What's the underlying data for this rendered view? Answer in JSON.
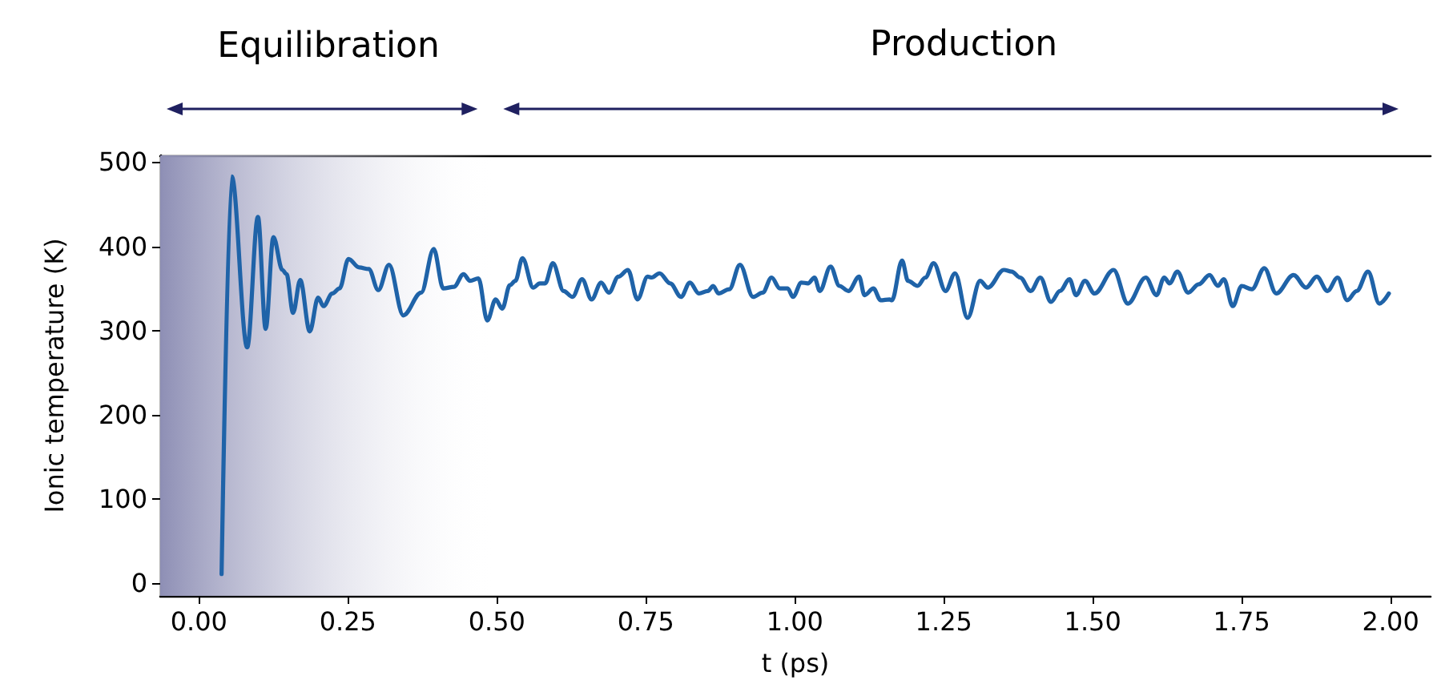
{
  "chart_data": {
    "type": "line",
    "xlabel": "t (ps)",
    "ylabel": "Ionic temperature (K)",
    "xlim": [
      -0.065,
      2.067
    ],
    "ylim": [
      -15,
      508
    ],
    "xticks": [
      {
        "value": 0,
        "label": "0.00"
      },
      {
        "value": 0.25,
        "label": "0.25"
      },
      {
        "value": 0.5,
        "label": "0.50"
      },
      {
        "value": 0.75,
        "label": "0.75"
      },
      {
        "value": 1,
        "label": "1.00"
      },
      {
        "value": 1.25,
        "label": "1.25"
      },
      {
        "value": 1.5,
        "label": "1.50"
      },
      {
        "value": 1.75,
        "label": "1.75"
      },
      {
        "value": 2,
        "label": "2.00"
      }
    ],
    "yticks": [
      0,
      100,
      200,
      300,
      400,
      500
    ],
    "grid": false,
    "marker": "none",
    "line_style": "solid",
    "bands": [
      {
        "axis": "x",
        "from": -0.065,
        "to": 0.5,
        "label": "Equilibration",
        "color": "#8e8fb5"
      }
    ],
    "annotations": [
      "Production"
    ],
    "series": [
      {
        "color": "#1f63a8",
        "x": [
          0.038,
          0.055,
          0.081,
          0.099,
          0.112,
          0.125,
          0.14,
          0.147,
          0.158,
          0.17,
          0.186,
          0.2,
          0.209,
          0.224,
          0.236,
          0.251,
          0.269,
          0.285,
          0.301,
          0.319,
          0.343,
          0.373,
          0.394,
          0.41,
          0.428,
          0.444,
          0.455,
          0.469,
          0.484,
          0.498,
          0.509,
          0.522,
          0.531,
          0.543,
          0.561,
          0.572,
          0.581,
          0.594,
          0.612,
          0.627,
          0.643,
          0.659,
          0.675,
          0.688,
          0.704,
          0.72,
          0.736,
          0.753,
          0.76,
          0.773,
          0.791,
          0.809,
          0.824,
          0.839,
          0.854,
          0.863,
          0.872,
          0.89,
          0.908,
          0.93,
          0.946,
          0.961,
          0.975,
          0.988,
          0.997,
          1.011,
          1.022,
          1.033,
          1.042,
          1.06,
          1.075,
          1.09,
          1.108,
          1.117,
          1.132,
          1.144,
          1.159,
          1.163,
          1.18,
          1.19,
          1.206,
          1.219,
          1.233,
          1.253,
          1.269,
          1.29,
          1.311,
          1.324,
          1.351,
          1.364,
          1.378,
          1.396,
          1.412,
          1.43,
          1.445,
          1.461,
          1.472,
          1.487,
          1.503,
          1.535,
          1.559,
          1.589,
          1.607,
          1.62,
          1.629,
          1.642,
          1.66,
          1.678,
          1.696,
          1.71,
          1.72,
          1.735,
          1.75,
          1.767,
          1.788,
          1.808,
          1.837,
          1.858,
          1.876,
          1.894,
          1.911,
          1.927,
          1.943,
          1.962,
          1.981,
          1.997
        ],
        "values": [
          11,
          483,
          280,
          435,
          302,
          411,
          372,
          367,
          321,
          360,
          299,
          339,
          329,
          344,
          350,
          385,
          375,
          373,
          348,
          378,
          318,
          345,
          397,
          350,
          352,
          367,
          359,
          362,
          312,
          337,
          326,
          354,
          359,
          386,
          351,
          356,
          356,
          380,
          347,
          340,
          361,
          337,
          357,
          345,
          364,
          372,
          337,
          364,
          363,
          368,
          356,
          340,
          357,
          344,
          347,
          353,
          344,
          349,
          378,
          340,
          345,
          363,
          350,
          350,
          340,
          357,
          356,
          363,
          347,
          376,
          353,
          347,
          364,
          342,
          350,
          336,
          337,
          336,
          383,
          359,
          353,
          363,
          380,
          347,
          368,
          315,
          359,
          351,
          372,
          370,
          363,
          347,
          363,
          334,
          347,
          361,
          342,
          359,
          344,
          372,
          332,
          363,
          342,
          363,
          356,
          370,
          345,
          355,
          366,
          353,
          361,
          329,
          353,
          349,
          374,
          344,
          366,
          351,
          364,
          347,
          363,
          336,
          347,
          370,
          332,
          344
        ]
      }
    ]
  }
}
